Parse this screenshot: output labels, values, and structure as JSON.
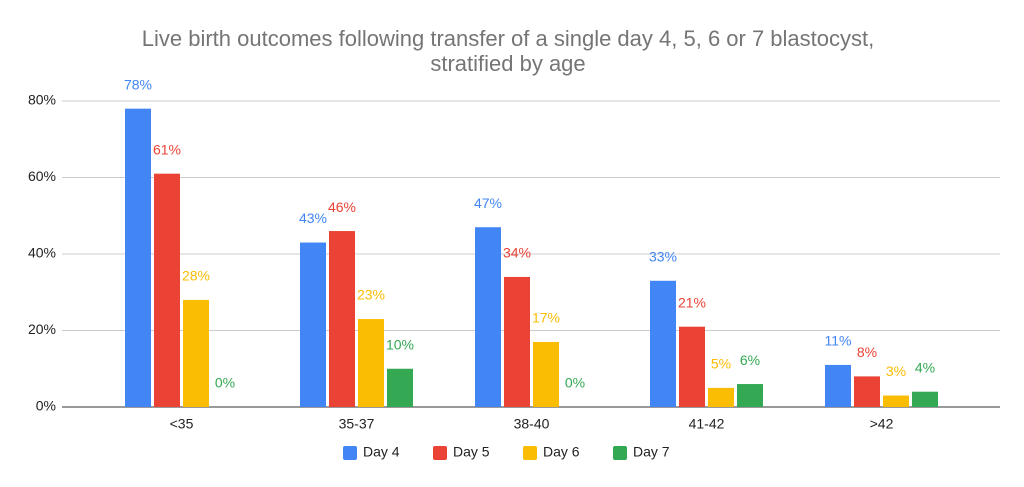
{
  "chart_data": {
    "type": "bar",
    "title": [
      "Live birth outcomes following transfer of a single day 4, 5, 6 or 7 blastocyst,",
      "stratified by age"
    ],
    "categories": [
      "<35",
      "35-37",
      "38-40",
      "41-42",
      ">42"
    ],
    "series": [
      {
        "name": "Day 4",
        "color": "#4285f4",
        "values": [
          78,
          43,
          47,
          33,
          11
        ],
        "value_labels": [
          "78%",
          "43%",
          "47%",
          "33%",
          "11%"
        ]
      },
      {
        "name": "Day 5",
        "color": "#ea4335",
        "values": [
          61,
          46,
          34,
          21,
          8
        ],
        "value_labels": [
          "61%",
          "46%",
          "34%",
          "21%",
          "8%"
        ]
      },
      {
        "name": "Day 6",
        "color": "#fbbc04",
        "values": [
          28,
          23,
          17,
          5,
          3
        ],
        "value_labels": [
          "28%",
          "23%",
          "17%",
          "5%",
          "3%"
        ]
      },
      {
        "name": "Day 7",
        "color": "#34a853",
        "values": [
          0,
          10,
          0,
          6,
          4
        ],
        "value_labels": [
          "0%",
          "10%",
          "0%",
          "6%",
          "4%"
        ]
      }
    ],
    "ylim": [
      0,
      80
    ],
    "yticks": [
      {
        "value": 0,
        "label": "0%"
      },
      {
        "value": 20,
        "label": "20%"
      },
      {
        "value": 40,
        "label": "40%"
      },
      {
        "value": 60,
        "label": "60%"
      },
      {
        "value": 80,
        "label": "80%"
      }
    ],
    "grid": true,
    "legend": "bottom"
  }
}
